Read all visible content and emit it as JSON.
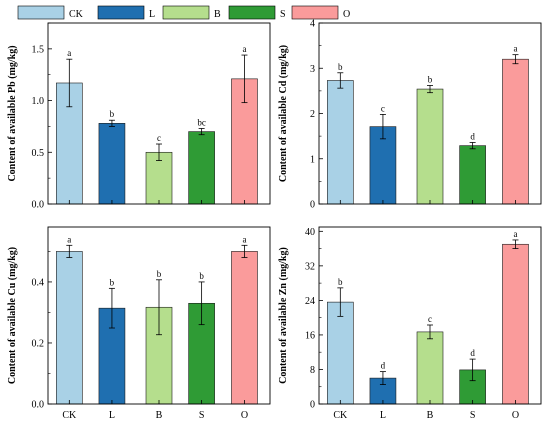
{
  "legend": [
    {
      "label": "CK",
      "color": "#a9d1e6"
    },
    {
      "label": "L",
      "color": "#1f6fb0"
    },
    {
      "label": "B",
      "color": "#b5de8d"
    },
    {
      "label": "S",
      "color": "#2f9b35"
    },
    {
      "label": "O",
      "color": "#fa9b9b"
    }
  ],
  "chart_data": [
    {
      "type": "bar",
      "categories": [
        "CK",
        "L",
        "B",
        "S",
        "O"
      ],
      "values": [
        1.17,
        0.78,
        0.5,
        0.7,
        1.21
      ],
      "errors": [
        0.23,
        0.03,
        0.08,
        0.03,
        0.23
      ],
      "letters": [
        "a",
        "b",
        "c",
        "bc",
        "a"
      ],
      "ylabel": "Content of available Pb (mg/kg)",
      "ylim": [
        0,
        1.75
      ],
      "yticks": [
        "0.0",
        "0.5",
        "1.0",
        "1.5"
      ],
      "show_xticks": false,
      "grid": false
    },
    {
      "type": "bar",
      "categories": [
        "CK",
        "L",
        "B",
        "S",
        "O"
      ],
      "values": [
        2.73,
        1.71,
        2.54,
        1.29,
        3.2
      ],
      "errors": [
        0.17,
        0.27,
        0.08,
        0.07,
        0.1
      ],
      "letters": [
        "b",
        "c",
        "b",
        "d",
        "a"
      ],
      "ylabel": "Content of available Cd (mg/kg)",
      "ylim": [
        0,
        4
      ],
      "yticks": [
        "0",
        "1",
        "2",
        "3",
        "4"
      ],
      "show_xticks": false,
      "grid": false
    },
    {
      "type": "bar",
      "categories": [
        "CK",
        "L",
        "B",
        "S",
        "O"
      ],
      "values": [
        0.5,
        0.314,
        0.317,
        0.33,
        0.5
      ],
      "errors": [
        0.02,
        0.065,
        0.09,
        0.07,
        0.02
      ],
      "letters": [
        "a",
        "b",
        "b",
        "b",
        "a"
      ],
      "ylabel": "Content of available Cu (mg/kg)",
      "ylim": [
        0,
        0.58
      ],
      "yticks": [
        "0.0",
        "0.2",
        "0.4"
      ],
      "show_xticks": true,
      "grid": false
    },
    {
      "type": "bar",
      "categories": [
        "CK",
        "L",
        "B",
        "S",
        "O"
      ],
      "values": [
        23.6,
        6.0,
        16.7,
        7.9,
        37.0
      ],
      "errors": [
        3.3,
        1.5,
        1.6,
        2.5,
        1.0
      ],
      "letters": [
        "b",
        "d",
        "c",
        "d",
        "a"
      ],
      "ylabel": "Content of available Zn (mg/kg)",
      "ylim": [
        0,
        41
      ],
      "yticks": [
        "0",
        "8",
        "16",
        "24",
        "32",
        "40"
      ],
      "show_xticks": true,
      "grid": false
    }
  ]
}
